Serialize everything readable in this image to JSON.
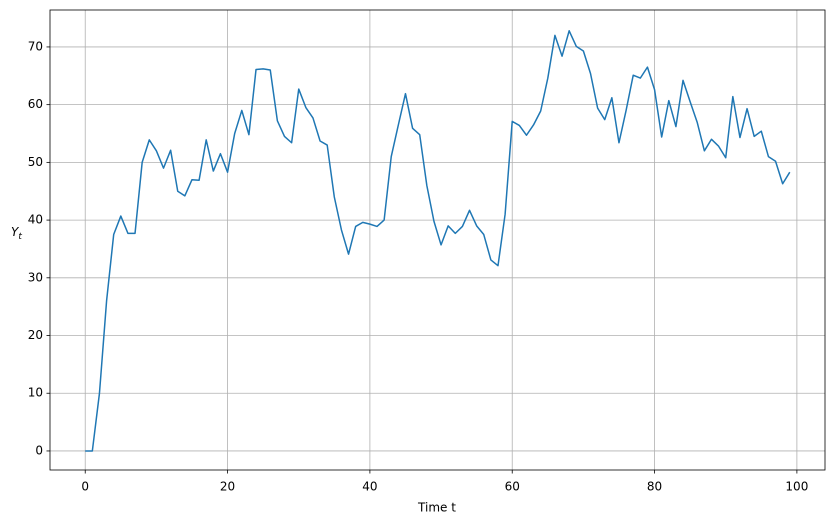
{
  "chart_data": {
    "type": "line",
    "xlabel": "Time t",
    "ylabel": [
      "Y",
      "t"
    ],
    "x": [
      0,
      1,
      2,
      3,
      4,
      5,
      6,
      7,
      8,
      9,
      10,
      11,
      12,
      13,
      14,
      15,
      16,
      17,
      18,
      19,
      20,
      21,
      22,
      23,
      24,
      25,
      26,
      27,
      28,
      29,
      30,
      31,
      32,
      33,
      34,
      35,
      36,
      37,
      38,
      39,
      40,
      41,
      42,
      43,
      44,
      45,
      46,
      47,
      48,
      49,
      50,
      51,
      52,
      53,
      54,
      55,
      56,
      57,
      58,
      59,
      60,
      61,
      62,
      63,
      64,
      65,
      66,
      67,
      68,
      69,
      70,
      71,
      72,
      73,
      74,
      75,
      76,
      77,
      78,
      79,
      80,
      81,
      82,
      83,
      84,
      85,
      86,
      87,
      88,
      89,
      90,
      91,
      92,
      93,
      94,
      95,
      96,
      97,
      98,
      99
    ],
    "values": [
      0,
      0,
      10,
      26,
      37.5,
      40.7,
      37.7,
      37.7,
      50,
      53.9,
      52,
      49,
      52.1,
      45,
      44.2,
      47,
      46.9,
      53.9,
      48.5,
      51.5,
      48.3,
      55,
      59,
      54.8,
      66.1,
      66.2,
      66,
      57.2,
      54.5,
      53.4,
      62.7,
      59.5,
      57.7,
      53.7,
      53,
      44,
      38.3,
      34.1,
      38.9,
      39.6,
      39.3,
      38.9,
      40,
      51,
      56.5,
      61.9,
      55.9,
      54.8,
      46,
      39.8,
      35.7,
      39,
      37.7,
      38.9,
      41.7,
      39,
      37.5,
      33.1,
      32.1,
      41,
      57.1,
      56.4,
      54.7,
      56.5,
      58.9,
      64.6,
      72,
      68.4,
      72.8,
      70.1,
      69.3,
      65.4,
      59.4,
      57.4,
      61.2,
      53.4,
      59,
      65.1,
      64.6,
      66.5,
      62.6,
      54.4,
      60.7,
      56.2,
      64.2,
      60.5,
      56.9,
      52,
      54,
      52.8,
      50.8,
      61.4,
      54.3,
      59.3,
      54.5,
      55.4,
      51,
      50.2,
      46.3,
      48.3
    ],
    "color": "#1f77b4",
    "xlim": [
      -4.95,
      103.95
    ],
    "xticks": [
      0,
      20,
      40,
      60,
      80,
      100
    ],
    "ylim": [
      -3.3,
      76.4
    ],
    "yticks": [
      0,
      10,
      20,
      30,
      40,
      50,
      60,
      70
    ],
    "grid": true
  }
}
